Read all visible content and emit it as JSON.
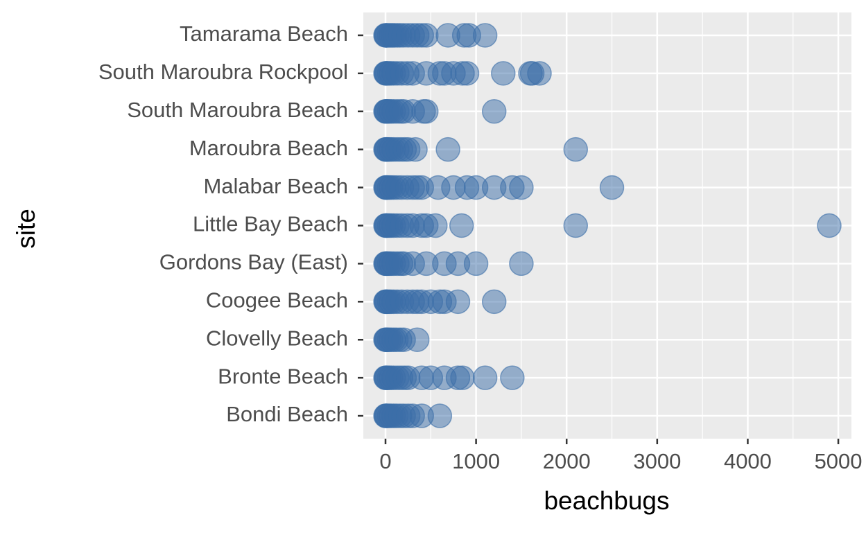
{
  "chart_data": {
    "type": "scatter",
    "x_label": "beachbugs",
    "y_label": "site",
    "categories": [
      "Bondi Beach",
      "Bronte Beach",
      "Clovelly Beach",
      "Coogee Beach",
      "Gordons Bay (East)",
      "Little Bay Beach",
      "Malabar Beach",
      "Maroubra Beach",
      "South Maroubra Beach",
      "South Maroubra Rockpool",
      "Tamarama Beach"
    ],
    "values": [
      [
        0,
        5,
        10,
        20,
        40,
        60,
        90,
        120,
        160,
        200,
        250,
        300,
        400,
        600
      ],
      [
        0,
        5,
        10,
        20,
        40,
        60,
        90,
        130,
        170,
        210,
        250,
        400,
        500,
        650,
        800,
        850,
        1100,
        1400
      ],
      [
        0,
        5,
        10,
        20,
        40,
        60,
        90,
        120,
        160,
        200,
        350
      ],
      [
        0,
        5,
        10,
        20,
        40,
        60,
        90,
        130,
        180,
        240,
        300,
        350,
        400,
        500,
        600,
        650,
        800,
        1200
      ],
      [
        0,
        5,
        10,
        20,
        40,
        60,
        90,
        130,
        170,
        200,
        300,
        450,
        650,
        800,
        1000,
        1500
      ],
      [
        0,
        5,
        10,
        20,
        40,
        60,
        90,
        130,
        180,
        240,
        300,
        400,
        450,
        550,
        840,
        2100,
        4900
      ],
      [
        0,
        5,
        10,
        20,
        40,
        60,
        90,
        130,
        180,
        240,
        300,
        350,
        400,
        580,
        750,
        900,
        1000,
        1200,
        1400,
        1500,
        2500
      ],
      [
        0,
        5,
        10,
        20,
        40,
        60,
        90,
        130,
        170,
        210,
        250,
        330,
        690,
        2100
      ],
      [
        0,
        5,
        10,
        20,
        40,
        60,
        90,
        130,
        170,
        200,
        300,
        420,
        450,
        1200
      ],
      [
        0,
        5,
        10,
        20,
        40,
        60,
        90,
        130,
        180,
        240,
        300,
        450,
        600,
        650,
        750,
        850,
        900,
        1300,
        1600,
        1620,
        1700
      ],
      [
        0,
        5,
        10,
        20,
        40,
        60,
        80,
        100,
        130,
        160,
        200,
        250,
        300,
        350,
        400,
        450,
        690,
        870,
        920,
        1100
      ]
    ],
    "color": "#3b6ea8",
    "xlim": [
      -245,
      5145
    ],
    "xticks": [
      0,
      1000,
      2000,
      3000,
      4000,
      5000
    ],
    "x_minor_grid": [
      500,
      1500,
      2500,
      3500,
      4500
    ],
    "grid": true
  }
}
